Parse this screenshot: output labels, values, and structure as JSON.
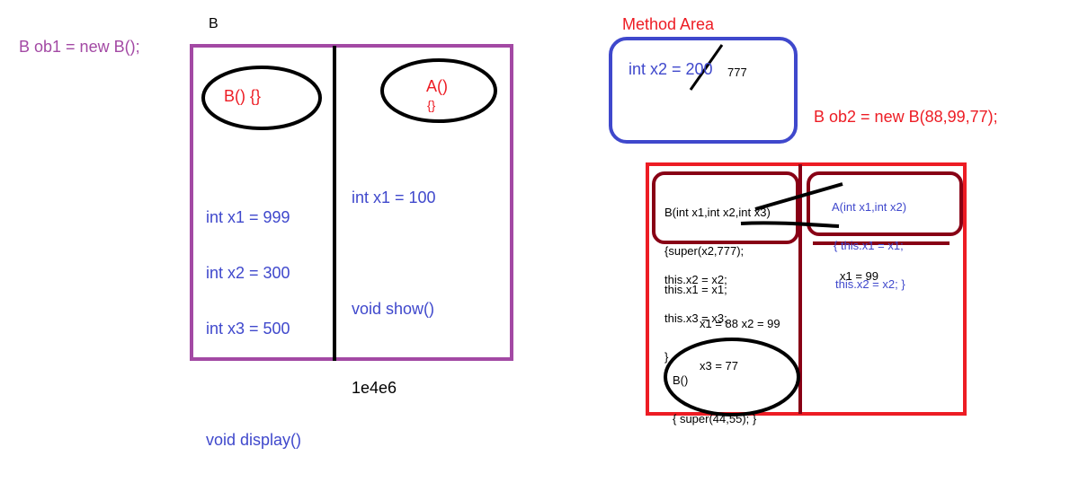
{
  "colors": {
    "purple": "#a349a4",
    "red": "#ed1c24",
    "blue": "#3f48cc",
    "dark_red": "#880015",
    "black": "#000000"
  },
  "left": {
    "statement": "B ob1 = new B();",
    "class_label": "B",
    "b_constructor": "B() {}",
    "a_constructor": "A()",
    "a_constructor_body": "{}",
    "b_members": [
      "int x1 = 999",
      "int x2 = 300",
      "int x3 = 500",
      "",
      "void display()"
    ],
    "a_members": [
      "int x1 = 100",
      "",
      "void show()"
    ],
    "address": "1e4e6"
  },
  "method_area": {
    "title": "Method Area",
    "static_var": "int x2 = 200",
    "new_value": "777"
  },
  "right": {
    "statement": "B ob2 = new B(88,99,77);",
    "b_param_constructor": [
      "B(int x1,int x2,int x3)",
      "{super(x2,777);",
      "this.x1 = x1;"
    ],
    "b_body_rest": [
      "this.x2 = x2;",
      "this.x3 = x3;",
      "}"
    ],
    "b_values": [
      "x1 = 88 x2 = 99",
      "x3 = 77"
    ],
    "b_default_constructor": [
      "B()",
      "{ super(44,55); }"
    ],
    "a_param_constructor": [
      "A(int x1,int x2)",
      "{ this.x1 = x1;",
      "this.x2 = x2; }"
    ],
    "a_values": "x1 = 99"
  }
}
